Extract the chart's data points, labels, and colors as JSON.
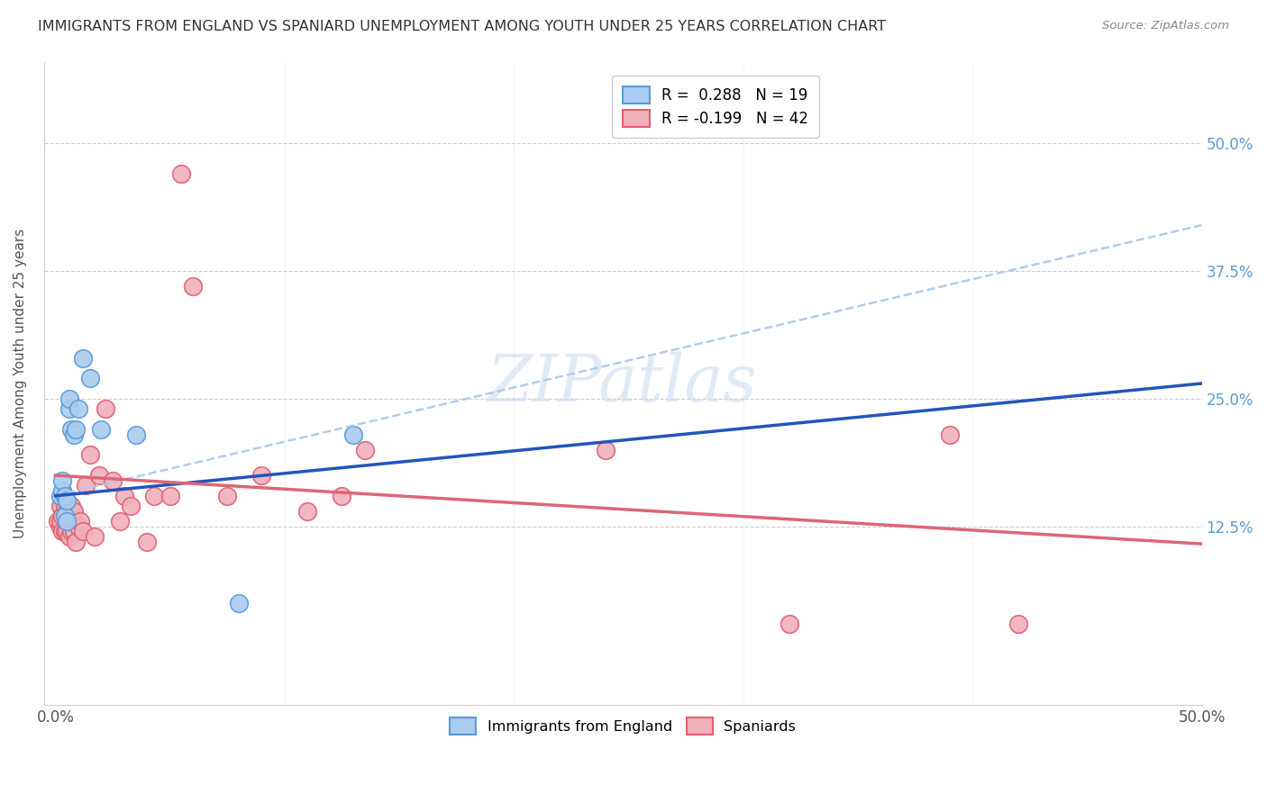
{
  "title": "IMMIGRANTS FROM ENGLAND VS SPANIARD UNEMPLOYMENT AMONG YOUTH UNDER 25 YEARS CORRELATION CHART",
  "source": "Source: ZipAtlas.com",
  "ylabel": "Unemployment Among Youth under 25 years",
  "x_tick_positions": [
    0.0,
    0.5
  ],
  "x_tick_labels": [
    "0.0%",
    "50.0%"
  ],
  "y_ticks": [
    0.125,
    0.25,
    0.375,
    0.5
  ],
  "y_tick_labels": [
    "12.5%",
    "25.0%",
    "37.5%",
    "50.0%"
  ],
  "xlim": [
    -0.005,
    0.5
  ],
  "ylim": [
    -0.05,
    0.58
  ],
  "legend_entry1": "R =  0.288   N = 19",
  "legend_entry2": "R = -0.199   N = 42",
  "legend_label1": "Immigrants from England",
  "legend_label2": "Spaniards",
  "watermark": "ZIPatlas",
  "blue_color": "#5b9bd5",
  "blue_fill": "#aaccf0",
  "pink_color": "#e06070",
  "pink_fill": "#f0b0bc",
  "trendline1_color": "#2255bb",
  "trendline2_color": "#dd6677",
  "trendline_dashed_color": "#aac8e8",
  "blue_line_x0": 0.0,
  "blue_line_y0": 0.155,
  "blue_line_x1": 0.5,
  "blue_line_y1": 0.265,
  "pink_line_x0": 0.0,
  "pink_line_y0": 0.175,
  "pink_line_x1": 0.5,
  "pink_line_y1": 0.108,
  "dash_line_x0": 0.0,
  "dash_line_y0": 0.155,
  "dash_line_x1": 0.5,
  "dash_line_y1": 0.42,
  "blue_points_x": [
    0.002,
    0.003,
    0.003,
    0.004,
    0.004,
    0.005,
    0.005,
    0.006,
    0.006,
    0.007,
    0.008,
    0.009,
    0.01,
    0.012,
    0.015,
    0.02,
    0.035,
    0.08,
    0.13
  ],
  "blue_points_y": [
    0.155,
    0.16,
    0.17,
    0.135,
    0.155,
    0.13,
    0.15,
    0.24,
    0.25,
    0.22,
    0.215,
    0.22,
    0.24,
    0.29,
    0.27,
    0.22,
    0.215,
    0.05,
    0.215
  ],
  "pink_points_x": [
    0.001,
    0.002,
    0.002,
    0.002,
    0.003,
    0.003,
    0.004,
    0.004,
    0.005,
    0.005,
    0.006,
    0.007,
    0.007,
    0.008,
    0.008,
    0.009,
    0.01,
    0.011,
    0.012,
    0.013,
    0.015,
    0.017,
    0.019,
    0.022,
    0.025,
    0.028,
    0.03,
    0.033,
    0.04,
    0.043,
    0.05,
    0.055,
    0.06,
    0.075,
    0.09,
    0.11,
    0.125,
    0.135,
    0.24,
    0.32,
    0.39,
    0.42
  ],
  "pink_points_y": [
    0.13,
    0.125,
    0.13,
    0.145,
    0.12,
    0.135,
    0.12,
    0.145,
    0.12,
    0.14,
    0.115,
    0.12,
    0.145,
    0.12,
    0.14,
    0.11,
    0.125,
    0.13,
    0.12,
    0.165,
    0.195,
    0.115,
    0.175,
    0.24,
    0.17,
    0.13,
    0.155,
    0.145,
    0.11,
    0.155,
    0.155,
    0.47,
    0.36,
    0.155,
    0.175,
    0.14,
    0.155,
    0.2,
    0.2,
    0.03,
    0.215,
    0.03
  ],
  "marker_size": 200,
  "marker_linewidth": 1.2
}
